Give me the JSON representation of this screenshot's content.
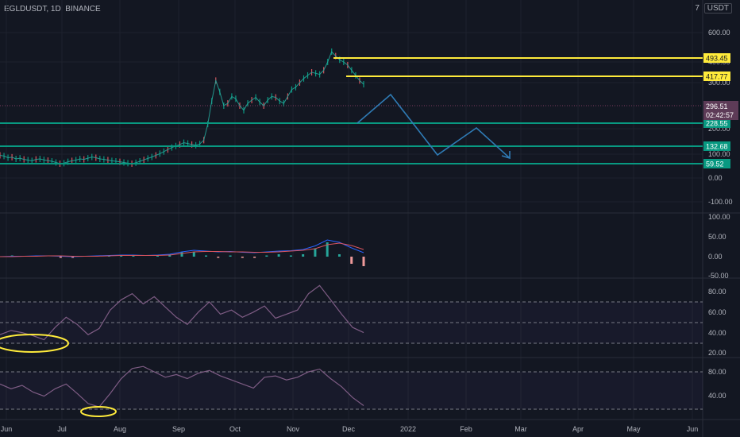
{
  "header": {
    "symbol_line": "EGLDUSDT, 1D, BINANCE",
    "log_flag": "7",
    "currency": "USDT"
  },
  "colors": {
    "background": "#131722",
    "grid": "#1e222d",
    "price_line": "#b2b5be",
    "yellow": "#ffeb3b",
    "green": "#089981",
    "projection": "#2f7bb5",
    "current_price_bg": "#5d3b57",
    "rsi_line": "#7e5c84",
    "macd_line": "#2962ff",
    "signal_line": "#d8545e"
  },
  "chart_data": [
    {
      "type": "line",
      "title": "EGLDUSDT, 1D, BINANCE",
      "x_labels": [
        "Jun",
        "Jul",
        "Aug",
        "Sep",
        "Oct",
        "Nov",
        "Dec",
        "2022",
        "Feb",
        "Mar",
        "Apr",
        "May",
        "Jun"
      ],
      "y_ticks": [
        "600.00",
        "400.00",
        "300.00",
        "200.00",
        "100.00",
        "0.00",
        "-100.00"
      ],
      "ylim": [
        -100,
        600
      ],
      "price": [
        95,
        92,
        85,
        87,
        80,
        83,
        78,
        75,
        72,
        78,
        80,
        76,
        73,
        70,
        65,
        60,
        62,
        68,
        72,
        75,
        80,
        78,
        83,
        88,
        85,
        80,
        78,
        75,
        72,
        70,
        68,
        65,
        62,
        60,
        64,
        70,
        76,
        82,
        88,
        95,
        102,
        110,
        118,
        126,
        132,
        138,
        145,
        142,
        138,
        135,
        140,
        155,
        210,
        260,
        310,
        280,
        250,
        255,
        270,
        265,
        250,
        240,
        255,
        262,
        268,
        258,
        250,
        262,
        270,
        268,
        260,
        255,
        270,
        285,
        290,
        300,
        320,
        335,
        350,
        345,
        340,
        360,
        400,
        470,
        440,
        415,
        400,
        385,
        360,
        335,
        310,
        296.51
      ],
      "horizontal_levels": [
        {
          "value": 493.45,
          "label": "493.45",
          "color": "yellow"
        },
        {
          "value": 417.77,
          "label": "417.77",
          "color": "yellow"
        },
        {
          "value": 228.55,
          "label": "228.55",
          "color": "green"
        },
        {
          "value": 132.68,
          "label": "132.68",
          "color": "green"
        },
        {
          "value": 59.52,
          "label": "59.52",
          "color": "green"
        }
      ],
      "current_price": {
        "value": 296.51,
        "label": "296.51",
        "countdown": "02:42:57"
      }
    },
    {
      "type": "line",
      "title": "",
      "y_ticks": [
        "100.00",
        "50.00",
        "0.00",
        "-50.00"
      ],
      "ylim": [
        -50,
        100
      ],
      "series": [
        {
          "color": "#2962ff",
          "values": [
            0,
            1,
            1,
            2,
            2,
            1,
            0,
            1,
            2,
            3,
            4,
            4,
            3,
            4,
            6,
            12,
            16,
            14,
            12,
            13,
            11,
            10,
            12,
            14,
            15,
            18,
            27,
            42,
            36,
            22,
            10
          ]
        },
        {
          "color": "#d8545e",
          "values": [
            0,
            0,
            1,
            1,
            2,
            2,
            1,
            1,
            1,
            2,
            3,
            3,
            3,
            3,
            4,
            8,
            12,
            13,
            13,
            12,
            12,
            11,
            11,
            12,
            14,
            16,
            20,
            30,
            34,
            28,
            18
          ]
        }
      ]
    },
    {
      "type": "line",
      "title": "",
      "y_ticks": [
        "80.00",
        "60.00",
        "40.00",
        "20.00"
      ],
      "ylim": [
        20,
        90
      ],
      "series": [
        {
          "color": "#7e5c84",
          "values": [
            38,
            42,
            40,
            37,
            33,
            45,
            55,
            48,
            38,
            44,
            62,
            72,
            78,
            68,
            75,
            65,
            55,
            48,
            60,
            70,
            58,
            62,
            55,
            60,
            66,
            54,
            58,
            62,
            78,
            86,
            72,
            58,
            45,
            40
          ]
        }
      ]
    },
    {
      "type": "line",
      "title": "",
      "y_ticks": [
        "80.00",
        "40.00"
      ],
      "ylim": [
        25,
        95
      ],
      "series": [
        {
          "color": "#7e5c84",
          "values": [
            62,
            55,
            60,
            50,
            44,
            55,
            62,
            48,
            33,
            28,
            48,
            70,
            85,
            88,
            80,
            72,
            76,
            70,
            78,
            82,
            74,
            68,
            62,
            56,
            72,
            74,
            68,
            72,
            80,
            84,
            70,
            58,
            42,
            30
          ]
        }
      ]
    }
  ]
}
